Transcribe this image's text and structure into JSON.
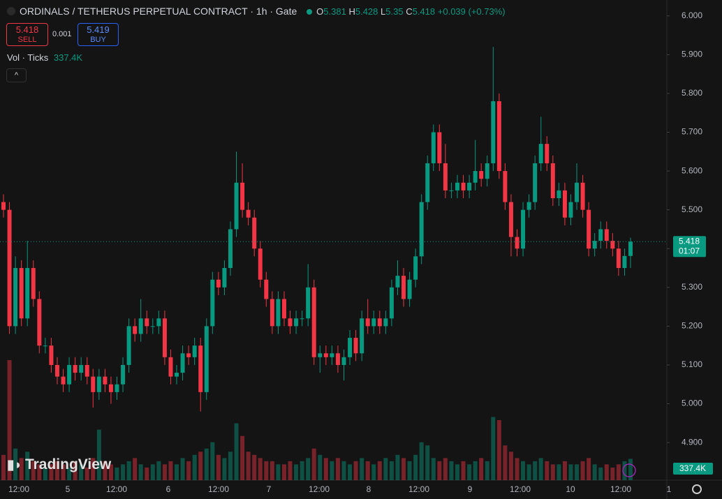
{
  "header": {
    "symbol_title": "ORDINALS / TETHERUS PERPETUAL CONTRACT · 1h · Gate",
    "o_label": "O",
    "h_label": "H",
    "l_label": "L",
    "c_label": "C",
    "change": "+0.039 (+0.73%)",
    "sell_price": "5.418",
    "sell": "SELL",
    "spread": "0.001",
    "buy_price": "5.419",
    "buy": "BUY",
    "volume_indicator": "Vol · Ticks",
    "watermark": "TradingView"
  },
  "chart_data": {
    "type": "candlestick",
    "up_color": "#089981",
    "down_color": "#f23645",
    "open": [
      5.52,
      5.5,
      5.2,
      5.35,
      5.22,
      5.35,
      5.27,
      5.15,
      5.15,
      5.1,
      5.07,
      5.05,
      5.1,
      5.08,
      5.1,
      5.07,
      5.03,
      5.07,
      5.05,
      5.03,
      5.05,
      5.1,
      5.2,
      5.18,
      5.22,
      5.2,
      5.2,
      5.22,
      5.12,
      5.07,
      5.08,
      5.13,
      5.12,
      5.15,
      5.03,
      5.2,
      5.32,
      5.3,
      5.35,
      5.45,
      5.57,
      5.5,
      5.48,
      5.4,
      5.32,
      5.27,
      5.2,
      5.27,
      5.22,
      5.2,
      5.22,
      5.22,
      5.3,
      5.12,
      5.13,
      5.12,
      5.13,
      5.1,
      5.12,
      5.17,
      5.13,
      5.22,
      5.2,
      5.22,
      5.2,
      5.22,
      5.3,
      5.33,
      5.27,
      5.32,
      5.38,
      5.52,
      5.62,
      5.7,
      5.62,
      5.55,
      5.55,
      5.57,
      5.55,
      5.57,
      5.6,
      5.58,
      5.62,
      5.78,
      5.6,
      5.52,
      5.43,
      5.4,
      5.5,
      5.52,
      5.62,
      5.67,
      5.62,
      5.53,
      5.55,
      5.48,
      5.52,
      5.57,
      5.5,
      5.4,
      5.42,
      5.45,
      5.42,
      5.4,
      5.35,
      5.381
    ],
    "high": [
      5.54,
      5.52,
      5.38,
      5.37,
      5.42,
      5.37,
      5.29,
      5.17,
      5.17,
      5.12,
      5.09,
      5.12,
      5.12,
      5.12,
      5.12,
      5.09,
      5.09,
      5.09,
      5.07,
      5.07,
      5.12,
      5.22,
      5.22,
      5.27,
      5.24,
      5.22,
      5.24,
      5.24,
      5.14,
      5.1,
      5.15,
      5.15,
      5.17,
      5.17,
      5.22,
      5.34,
      5.34,
      5.37,
      5.47,
      5.65,
      5.62,
      5.52,
      5.5,
      5.42,
      5.34,
      5.29,
      5.29,
      5.29,
      5.24,
      5.24,
      5.24,
      5.36,
      5.32,
      5.15,
      5.15,
      5.15,
      5.15,
      5.14,
      5.19,
      5.19,
      5.24,
      5.27,
      5.24,
      5.24,
      5.24,
      5.32,
      5.37,
      5.35,
      5.34,
      5.4,
      5.54,
      5.64,
      5.72,
      5.72,
      5.67,
      5.57,
      5.59,
      5.59,
      5.59,
      5.68,
      5.62,
      5.64,
      5.92,
      5.8,
      5.62,
      5.54,
      5.45,
      5.52,
      5.54,
      5.64,
      5.74,
      5.69,
      5.64,
      5.57,
      5.57,
      5.54,
      5.62,
      5.59,
      5.52,
      5.44,
      5.47,
      5.47,
      5.44,
      5.42,
      5.4,
      5.428
    ],
    "low": [
      5.48,
      5.18,
      5.18,
      5.2,
      5.2,
      5.25,
      5.13,
      5.13,
      5.08,
      5.05,
      5.03,
      5.03,
      5.06,
      5.06,
      5.05,
      4.99,
      5.01,
      5.03,
      5.0,
      5.01,
      5.03,
      5.08,
      5.16,
      5.16,
      5.18,
      5.18,
      5.18,
      5.1,
      5.05,
      5.05,
      5.06,
      5.1,
      5.1,
      4.98,
      5.01,
      5.18,
      5.28,
      5.28,
      5.33,
      5.43,
      5.48,
      5.46,
      5.38,
      5.3,
      5.25,
      5.18,
      5.18,
      5.2,
      5.18,
      5.18,
      5.2,
      5.2,
      5.1,
      5.08,
      5.1,
      5.1,
      5.08,
      5.06,
      5.1,
      5.11,
      5.11,
      5.18,
      5.18,
      5.18,
      5.18,
      5.2,
      5.28,
      5.25,
      5.25,
      5.3,
      5.36,
      5.5,
      5.6,
      5.6,
      5.53,
      5.53,
      5.53,
      5.53,
      5.53,
      5.55,
      5.56,
      5.56,
      5.6,
      5.58,
      5.5,
      5.38,
      5.38,
      5.38,
      5.48,
      5.5,
      5.6,
      5.6,
      5.51,
      5.51,
      5.46,
      5.46,
      5.5,
      5.48,
      5.38,
      5.38,
      5.4,
      5.4,
      5.38,
      5.33,
      5.33,
      5.35
    ],
    "close": [
      5.5,
      5.2,
      5.35,
      5.22,
      5.35,
      5.27,
      5.15,
      5.15,
      5.1,
      5.07,
      5.05,
      5.1,
      5.08,
      5.1,
      5.07,
      5.03,
      5.07,
      5.05,
      5.03,
      5.05,
      5.1,
      5.2,
      5.18,
      5.22,
      5.2,
      5.2,
      5.22,
      5.12,
      5.07,
      5.08,
      5.13,
      5.12,
      5.15,
      5.03,
      5.2,
      5.32,
      5.3,
      5.35,
      5.45,
      5.57,
      5.5,
      5.48,
      5.4,
      5.32,
      5.27,
      5.2,
      5.27,
      5.22,
      5.2,
      5.22,
      5.22,
      5.3,
      5.12,
      5.13,
      5.12,
      5.13,
      5.1,
      5.12,
      5.17,
      5.13,
      5.22,
      5.2,
      5.22,
      5.2,
      5.22,
      5.3,
      5.33,
      5.27,
      5.32,
      5.38,
      5.52,
      5.62,
      5.7,
      5.62,
      5.55,
      5.55,
      5.57,
      5.55,
      5.57,
      5.6,
      5.58,
      5.62,
      5.78,
      5.6,
      5.52,
      5.43,
      5.4,
      5.5,
      5.52,
      5.62,
      5.67,
      5.62,
      5.53,
      5.55,
      5.48,
      5.52,
      5.57,
      5.5,
      5.4,
      5.42,
      5.45,
      5.42,
      5.4,
      5.35,
      5.381,
      5.418
    ],
    "volume": [
      400000,
      1900000,
      500000,
      350000,
      450000,
      300000,
      250000,
      200000,
      250000,
      300000,
      250000,
      200000,
      300000,
      250000,
      200000,
      350000,
      800000,
      300000,
      250000,
      200000,
      250000,
      300000,
      350000,
      250000,
      200000,
      250000,
      300000,
      250000,
      300000,
      250000,
      350000,
      300000,
      400000,
      450000,
      500000,
      600000,
      400000,
      350000,
      450000,
      900000,
      700000,
      450000,
      400000,
      350000,
      300000,
      300000,
      250000,
      250000,
      300000,
      250000,
      300000,
      350000,
      500000,
      400000,
      350000,
      300000,
      350000,
      300000,
      250000,
      300000,
      350000,
      300000,
      250000,
      300000,
      350000,
      300000,
      400000,
      350000,
      300000,
      400000,
      600000,
      550000,
      350000,
      300000,
      350000,
      300000,
      250000,
      300000,
      250000,
      300000,
      350000,
      300000,
      1000000,
      950000,
      550000,
      450000,
      350000,
      300000,
      250000,
      300000,
      350000,
      300000,
      250000,
      250000,
      300000,
      250000,
      250000,
      300000,
      350000,
      250000,
      200000,
      250000,
      200000,
      250000,
      300000,
      337400
    ],
    "volume_last_label": "337.4K",
    "countdown": "01:07",
    "time_labels": [
      "12:00",
      "5",
      "12:00",
      "6",
      "12:00",
      "7",
      "12:00",
      "8",
      "12:00",
      "9",
      "12:00",
      "10",
      "12:00",
      "1"
    ],
    "ylim": [
      4.803,
      6.041
    ],
    "yticks": [
      {
        "value": 6,
        "label": "6.000"
      },
      {
        "value": 5.9,
        "label": "5.900"
      },
      {
        "value": 5.8,
        "label": "5.800"
      },
      {
        "value": 5.7,
        "label": "5.700"
      },
      {
        "value": 5.6,
        "label": "5.600"
      },
      {
        "value": 5.5,
        "label": "5.500"
      },
      {
        "value": 5.4,
        "label": "5.400"
      },
      {
        "value": 5.3,
        "label": "5.300"
      },
      {
        "value": 5.2,
        "label": "5.200"
      },
      {
        "value": 5.1,
        "label": "5.100"
      },
      {
        "value": 5,
        "label": "5.000"
      },
      {
        "value": 4.9,
        "label": "4.900"
      }
    ]
  }
}
